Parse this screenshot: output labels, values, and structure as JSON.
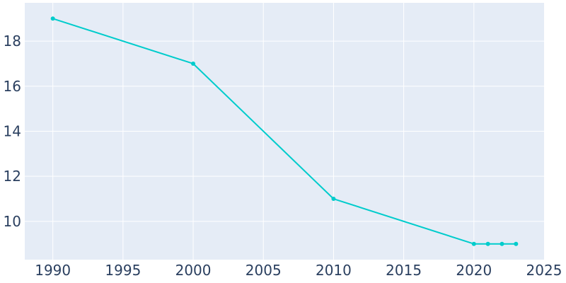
{
  "chart_data": {
    "type": "line",
    "title": "",
    "xlabel": "",
    "ylabel": "",
    "x": [
      1990,
      2000,
      2010,
      2020,
      2021,
      2022,
      2023
    ],
    "series": [
      {
        "values": [
          19,
          17,
          11,
          9,
          9,
          9,
          9
        ]
      }
    ],
    "xlim": [
      1988,
      2025
    ],
    "ylim": [
      8.3,
      19.7
    ],
    "x_ticks": [
      "1990",
      "1995",
      "2000",
      "2005",
      "2010",
      "2015",
      "2020",
      "2025"
    ],
    "y_ticks": [
      "10",
      "12",
      "14",
      "16",
      "18"
    ],
    "grid": true,
    "legend": "none",
    "colors": {
      "plot_background": "#e5ecf6",
      "grid": "#ffffff",
      "line": "#00cccc",
      "text": "#2a3f5f"
    }
  }
}
